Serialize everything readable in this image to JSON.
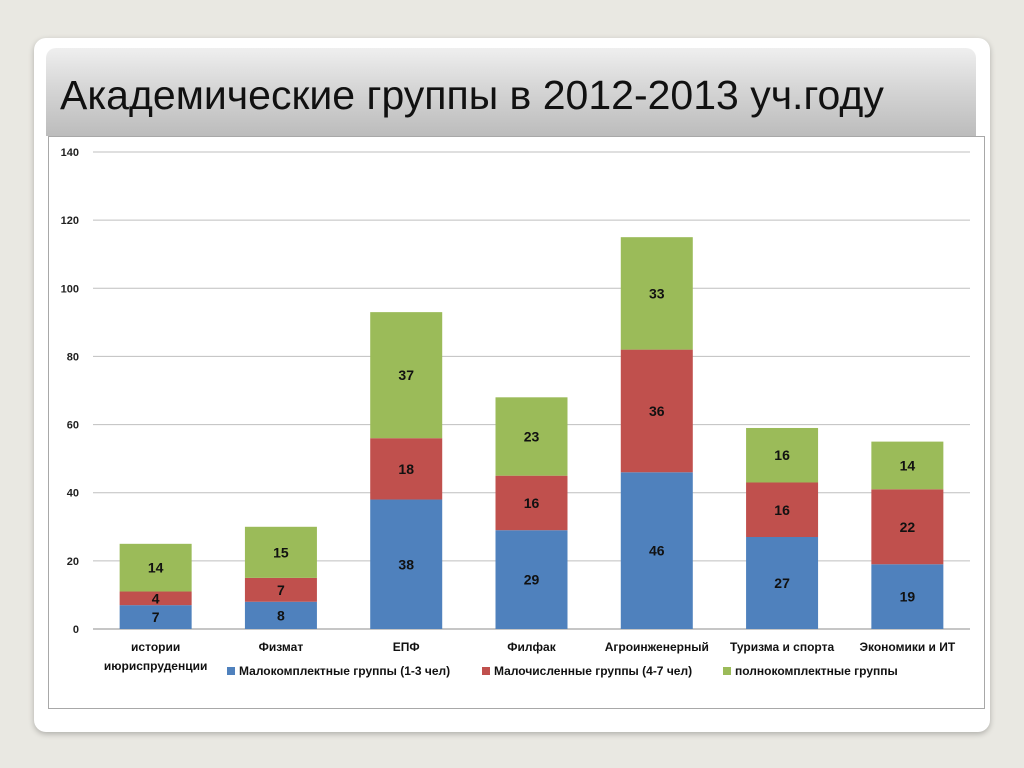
{
  "slide": {
    "title": "Академические группы в 2012-2013 уч.году"
  },
  "chart_data": {
    "type": "bar",
    "stacked": true,
    "categories": [
      [
        "истории",
        "июриспруденции"
      ],
      [
        "Физмат"
      ],
      [
        "ЕПФ"
      ],
      [
        "Филфак"
      ],
      [
        "Агроинженерный"
      ],
      [
        "Туризма и спорта"
      ],
      [
        "Экономики и ИТ"
      ]
    ],
    "series": [
      {
        "name": "Малокомплектные группы (1-3 чел)",
        "color": "#4f81bd",
        "values": [
          7,
          8,
          38,
          29,
          46,
          27,
          19
        ]
      },
      {
        "name": "Малочисленные группы (4-7 чел)",
        "color": "#c0504d",
        "values": [
          4,
          7,
          18,
          16,
          36,
          16,
          22
        ]
      },
      {
        "name": "полнокомплектные группы",
        "color": "#9bbb59",
        "values": [
          14,
          15,
          37,
          23,
          33,
          16,
          14
        ]
      }
    ],
    "yticks": [
      0,
      20,
      40,
      60,
      80,
      100,
      120,
      140
    ],
    "ylim": [
      0,
      140
    ],
    "grid": true,
    "legend": "bottom"
  }
}
